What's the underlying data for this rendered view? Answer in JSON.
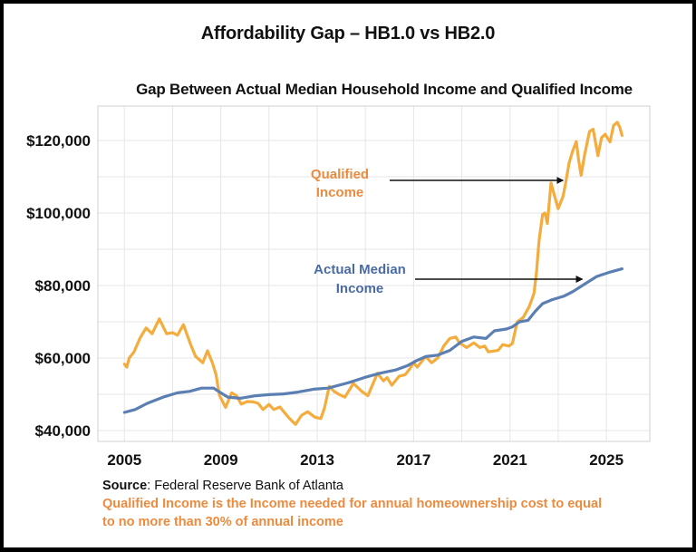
{
  "header": {
    "title": "Affordability Gap – HB1.0 vs HB2.0"
  },
  "footer": {
    "source_label": "Source",
    "source_text": ": Federal Reserve Bank of Atlanta",
    "note_line1": "Qualified Income is the Income needed for annual homeownership cost to equal",
    "note_line2": "to no more than 30% of annual income"
  },
  "colors": {
    "qualified": "#f4ac3d",
    "actual": "#5b7fb2",
    "qualified_label": "#ec8b3f",
    "actual_label": "#4a6ba3",
    "grid": "#e6e6e6",
    "axis": "#d0d0d0",
    "arrow": "#111111"
  },
  "chart_data": {
    "type": "line",
    "title": "Gap Between Actual Median Household Income and Qualified Income",
    "xlabel": "",
    "ylabel": "",
    "xlim": [
      2003.9,
      2026.8
    ],
    "ylim": [
      37000,
      129500
    ],
    "x_ticks": [
      2005,
      2009,
      2013,
      2017,
      2021,
      2025
    ],
    "x_tick_labels": [
      "2005",
      "2009",
      "2013",
      "2017",
      "2021",
      "2025"
    ],
    "x_gridlines": [
      2005,
      2007,
      2009,
      2011,
      2013,
      2015,
      2017,
      2019,
      2021,
      2023,
      2025
    ],
    "y_ticks": [
      40000,
      60000,
      80000,
      100000,
      120000
    ],
    "y_tick_labels": [
      "$40,000",
      "$60,000",
      "$80,000",
      "$100,000",
      "$120,000"
    ],
    "y_gridlines": [
      40000,
      50000,
      60000,
      70000,
      80000,
      90000,
      100000,
      110000,
      120000
    ],
    "grid": true,
    "legend": "none",
    "annotations": [
      {
        "lines": [
          "Qualified",
          "Income"
        ],
        "series": "Qualified Income",
        "arrow_to": [
          2023.2,
          109500
        ]
      },
      {
        "lines": [
          "Actual Median",
          "Income"
        ],
        "series": "Actual Median Income",
        "arrow_to": [
          2024.0,
          82200
        ]
      }
    ],
    "series": [
      {
        "name": "Qualified Income",
        "color": "#f4ac3d",
        "points": [
          [
            2005.0,
            58300
          ],
          [
            2005.1,
            57500
          ],
          [
            2005.2,
            60000
          ],
          [
            2005.4,
            61700
          ],
          [
            2005.65,
            65500
          ],
          [
            2005.9,
            68300
          ],
          [
            2006.15,
            66700
          ],
          [
            2006.45,
            70800
          ],
          [
            2006.75,
            66700
          ],
          [
            2007.0,
            67000
          ],
          [
            2007.2,
            66300
          ],
          [
            2007.45,
            69200
          ],
          [
            2007.75,
            63700
          ],
          [
            2007.95,
            60500
          ],
          [
            2008.25,
            58700
          ],
          [
            2008.45,
            62000
          ],
          [
            2008.65,
            58700
          ],
          [
            2008.8,
            55500
          ],
          [
            2008.95,
            49600
          ],
          [
            2009.2,
            46400
          ],
          [
            2009.45,
            50400
          ],
          [
            2009.65,
            49600
          ],
          [
            2009.85,
            47300
          ],
          [
            2010.1,
            48000
          ],
          [
            2010.35,
            47900
          ],
          [
            2010.55,
            47500
          ],
          [
            2010.75,
            45800
          ],
          [
            2011.0,
            47200
          ],
          [
            2011.2,
            45800
          ],
          [
            2011.45,
            46500
          ],
          [
            2011.8,
            43700
          ],
          [
            2012.1,
            41700
          ],
          [
            2012.35,
            44200
          ],
          [
            2012.6,
            45200
          ],
          [
            2012.9,
            43700
          ],
          [
            2013.15,
            43300
          ],
          [
            2013.3,
            46200
          ],
          [
            2013.5,
            52200
          ],
          [
            2013.7,
            50800
          ],
          [
            2013.9,
            50000
          ],
          [
            2014.15,
            49200
          ],
          [
            2014.5,
            53000
          ],
          [
            2014.85,
            50800
          ],
          [
            2015.1,
            49600
          ],
          [
            2015.5,
            55800
          ],
          [
            2015.75,
            53700
          ],
          [
            2015.9,
            54600
          ],
          [
            2016.1,
            52500
          ],
          [
            2016.4,
            55000
          ],
          [
            2016.65,
            55400
          ],
          [
            2016.85,
            57100
          ],
          [
            2017.0,
            58700
          ],
          [
            2017.15,
            57500
          ],
          [
            2017.5,
            60400
          ],
          [
            2017.75,
            58700
          ],
          [
            2018.0,
            60000
          ],
          [
            2018.25,
            63300
          ],
          [
            2018.5,
            65400
          ],
          [
            2018.75,
            65800
          ],
          [
            2018.9,
            64200
          ],
          [
            2019.2,
            62900
          ],
          [
            2019.5,
            64200
          ],
          [
            2019.75,
            62900
          ],
          [
            2019.95,
            63300
          ],
          [
            2020.1,
            61700
          ],
          [
            2020.5,
            62100
          ],
          [
            2020.7,
            63700
          ],
          [
            2020.95,
            63300
          ],
          [
            2021.1,
            64000
          ],
          [
            2021.3,
            70000
          ],
          [
            2021.55,
            71200
          ],
          [
            2021.8,
            74200
          ],
          [
            2022.0,
            77900
          ],
          [
            2022.1,
            83700
          ],
          [
            2022.2,
            92100
          ],
          [
            2022.35,
            99600
          ],
          [
            2022.45,
            100000
          ],
          [
            2022.55,
            97100
          ],
          [
            2022.7,
            108300
          ],
          [
            2022.85,
            104600
          ],
          [
            2023.0,
            101200
          ],
          [
            2023.2,
            104600
          ],
          [
            2023.3,
            107900
          ],
          [
            2023.45,
            113700
          ],
          [
            2023.6,
            117100
          ],
          [
            2023.75,
            119700
          ],
          [
            2023.85,
            114600
          ],
          [
            2023.95,
            110400
          ],
          [
            2024.1,
            116200
          ],
          [
            2024.3,
            122500
          ],
          [
            2024.45,
            123100
          ],
          [
            2024.65,
            115800
          ],
          [
            2024.8,
            120800
          ],
          [
            2024.95,
            121700
          ],
          [
            2025.15,
            119600
          ],
          [
            2025.3,
            124200
          ],
          [
            2025.45,
            125000
          ],
          [
            2025.55,
            123700
          ],
          [
            2025.65,
            121400
          ]
        ]
      },
      {
        "name": "Actual Median Income",
        "color": "#5b7fb2",
        "points": [
          [
            2005.0,
            45000
          ],
          [
            2005.45,
            45800
          ],
          [
            2005.95,
            47500
          ],
          [
            2006.6,
            49200
          ],
          [
            2007.2,
            50400
          ],
          [
            2007.7,
            50800
          ],
          [
            2008.2,
            51700
          ],
          [
            2008.7,
            51700
          ],
          [
            2009.0,
            50400
          ],
          [
            2009.3,
            49200
          ],
          [
            2009.8,
            48900
          ],
          [
            2010.45,
            49600
          ],
          [
            2011.0,
            49900
          ],
          [
            2011.6,
            50100
          ],
          [
            2012.2,
            50600
          ],
          [
            2012.85,
            51400
          ],
          [
            2013.45,
            51700
          ],
          [
            2014.35,
            53300
          ],
          [
            2014.95,
            54600
          ],
          [
            2015.6,
            55800
          ],
          [
            2016.25,
            56700
          ],
          [
            2016.75,
            57900
          ],
          [
            2017.1,
            59200
          ],
          [
            2017.5,
            60400
          ],
          [
            2018.0,
            60800
          ],
          [
            2018.5,
            62100
          ],
          [
            2019.0,
            64600
          ],
          [
            2019.5,
            65800
          ],
          [
            2020.0,
            65400
          ],
          [
            2020.35,
            67500
          ],
          [
            2020.85,
            68000
          ],
          [
            2021.1,
            68600
          ],
          [
            2021.4,
            70000
          ],
          [
            2021.75,
            70400
          ],
          [
            2022.05,
            72900
          ],
          [
            2022.35,
            75000
          ],
          [
            2022.75,
            76100
          ],
          [
            2023.25,
            77100
          ],
          [
            2023.6,
            78300
          ],
          [
            2024.1,
            80400
          ],
          [
            2024.6,
            82500
          ],
          [
            2025.1,
            83600
          ],
          [
            2025.65,
            84600
          ]
        ]
      }
    ]
  }
}
